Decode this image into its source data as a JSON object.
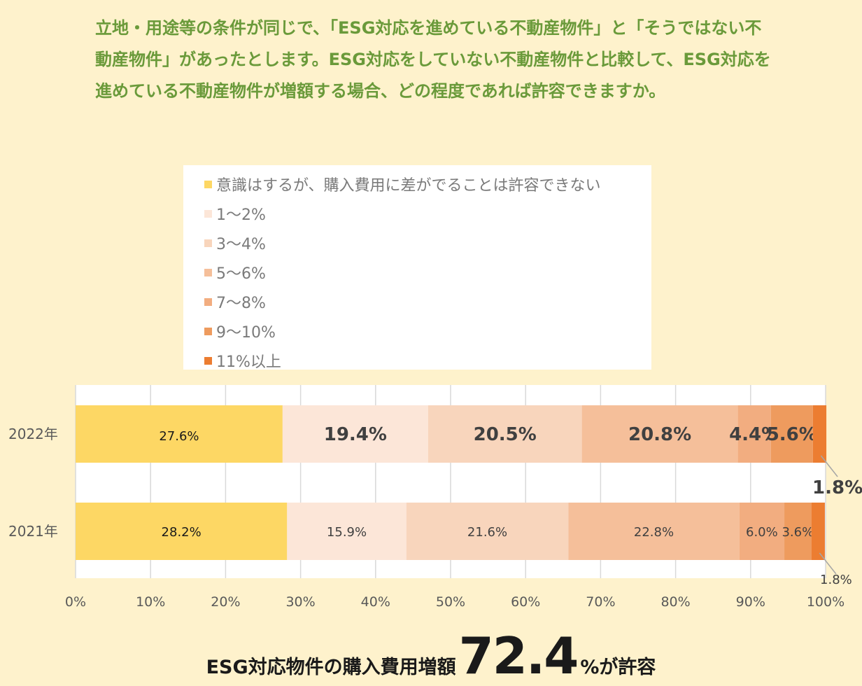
{
  "question": "立地・用途等の条件が同じで、「ESG対応を進めている不動産物件」と「そうではない不動産物件」があったとします。ESG対応をしていない不動産物件と比較して、ESG対応を進めている不動産物件が増額する場合、どの程度であれば許容できますか。",
  "legend": [
    {
      "label": "意識はするが、購入費用に差がでることは許容できない",
      "color": "#FDD764"
    },
    {
      "label": "1〜2%",
      "color": "#FCE6D8"
    },
    {
      "label": "3〜4%",
      "color": "#F8D5BC"
    },
    {
      "label": "5〜6%",
      "color": "#F5BF9A"
    },
    {
      "label": "7〜8%",
      "color": "#F2AD80"
    },
    {
      "label": "9〜10%",
      "color": "#EE9B5E"
    },
    {
      "label": "11%以上",
      "color": "#EC7D31"
    }
  ],
  "chart_data": {
    "type": "bar",
    "orientation": "horizontal",
    "stacked": "percent",
    "categories": [
      "2022年",
      "2021年"
    ],
    "series": [
      {
        "name": "意識はするが、購入費用に差がでることは許容できない",
        "values": [
          27.6,
          28.2
        ],
        "labels": [
          "27.6%",
          "28.2%"
        ]
      },
      {
        "name": "1〜2%",
        "values": [
          19.4,
          15.9
        ],
        "labels": [
          "19.4%",
          "15.9%"
        ]
      },
      {
        "name": "3〜4%",
        "values": [
          20.5,
          21.6
        ],
        "labels": [
          "20.5%",
          "21.6%"
        ]
      },
      {
        "name": "5〜6%",
        "values": [
          20.8,
          22.8
        ],
        "labels": [
          "20.8%",
          "22.8%"
        ]
      },
      {
        "name": "7〜8%",
        "values": [
          4.4,
          6.0
        ],
        "labels": [
          "4.4%",
          "6.0%"
        ]
      },
      {
        "name": "9〜10%",
        "values": [
          5.6,
          3.6
        ],
        "labels": [
          "5.6%",
          "3.6%"
        ]
      },
      {
        "name": "11%以上",
        "values": [
          1.8,
          1.8
        ],
        "labels": [
          "1.8%",
          "1.8%"
        ]
      }
    ],
    "xticks": [
      "0%",
      "10%",
      "20%",
      "30%",
      "40%",
      "50%",
      "60%",
      "70%",
      "80%",
      "90%",
      "100%"
    ],
    "xlim": [
      0,
      100
    ],
    "grid": true,
    "legend_position": "top",
    "highlight_category": "2022年"
  },
  "footer": {
    "lead": "ESG対応物件の購入費用増額",
    "value": "72.4",
    "tail": "%が許容"
  }
}
